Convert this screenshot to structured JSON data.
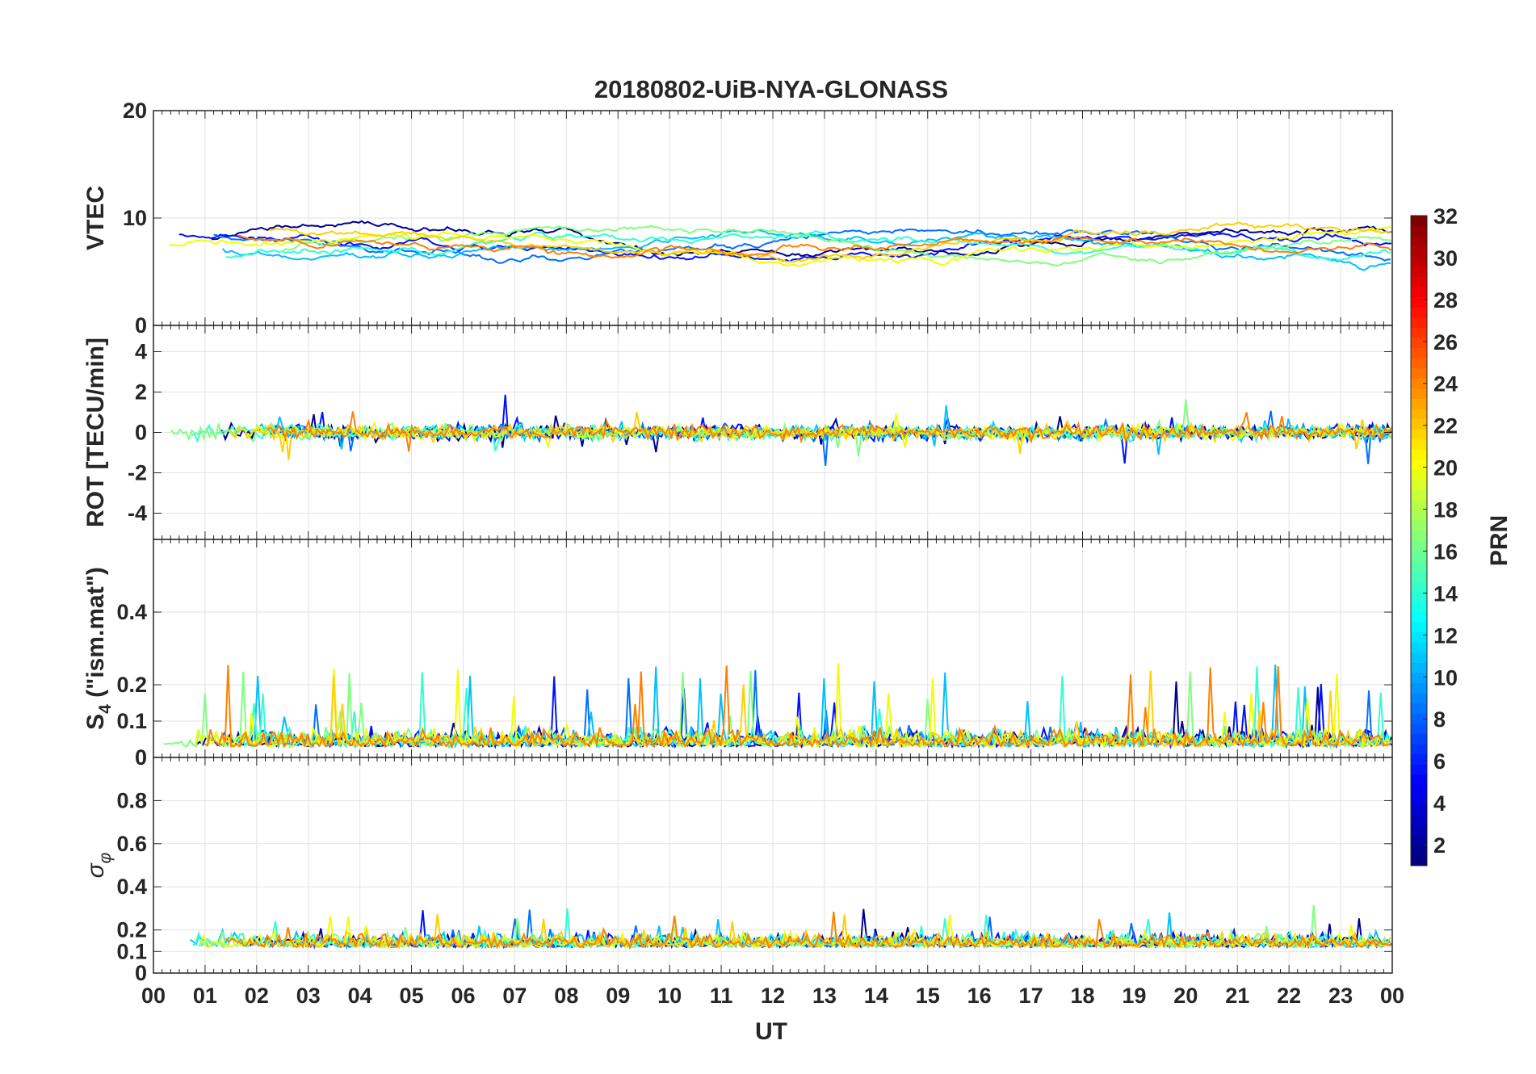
{
  "chart_data": {
    "type": "line",
    "title": "20180802-UiB-NYA-GLONASS",
    "xlabel": "UT",
    "x_tick_labels": [
      "00",
      "01",
      "02",
      "03",
      "04",
      "05",
      "06",
      "07",
      "08",
      "09",
      "10",
      "11",
      "12",
      "13",
      "14",
      "15",
      "16",
      "17",
      "18",
      "19",
      "20",
      "21",
      "22",
      "23",
      "00"
    ],
    "xlim_hours": [
      0,
      24
    ],
    "grid": true,
    "colorbar": {
      "label": "PRN",
      "range": [
        1,
        32
      ],
      "ticks": [
        2,
        4,
        6,
        8,
        10,
        12,
        14,
        16,
        18,
        20,
        22,
        24,
        26,
        28,
        30,
        32
      ],
      "colormap": "jet",
      "position": "right"
    },
    "panels": [
      {
        "id": "vtec",
        "ylabel": "VTEC",
        "ylim": [
          0,
          20
        ],
        "yticks": [
          0,
          10,
          20
        ],
        "typical_range": [
          4,
          11
        ]
      },
      {
        "id": "rot",
        "ylabel": "ROT [TECU/min]",
        "ylim": [
          -5.3,
          5.3
        ],
        "yticks": [
          -4,
          -2,
          0,
          2,
          4
        ],
        "typical_range": [
          -2,
          2.5
        ]
      },
      {
        "id": "s4",
        "ylabel_main": "S",
        "ylabel_sub": "4",
        "ylabel_rest": " (\"ism.mat\")",
        "ylim": [
          0,
          0.6
        ],
        "yticks": [
          0,
          0.1,
          0.2,
          0.4
        ],
        "typical_range": [
          0.03,
          0.4
        ]
      },
      {
        "id": "sigphi",
        "ylabel_main": "σ",
        "ylabel_sub": "φ",
        "ylim": [
          0,
          1.0
        ],
        "yticks": [
          0,
          0.1,
          0.2,
          0.4,
          0.6,
          0.8
        ],
        "typical_range": [
          0.08,
          0.42
        ]
      }
    ],
    "series": [
      {
        "prn": 1,
        "color": "#00008f"
      },
      {
        "prn": 4,
        "color": "#0010ff"
      },
      {
        "prn": 8,
        "color": "#0070ff"
      },
      {
        "prn": 11,
        "color": "#00c0ff"
      },
      {
        "prn": 13,
        "color": "#30ffcf"
      },
      {
        "prn": 16,
        "color": "#80ff80"
      },
      {
        "prn": 20,
        "color": "#f0ff00"
      },
      {
        "prn": 22,
        "color": "#ffd000"
      },
      {
        "prn": 24,
        "color": "#ff8000"
      }
    ]
  }
}
